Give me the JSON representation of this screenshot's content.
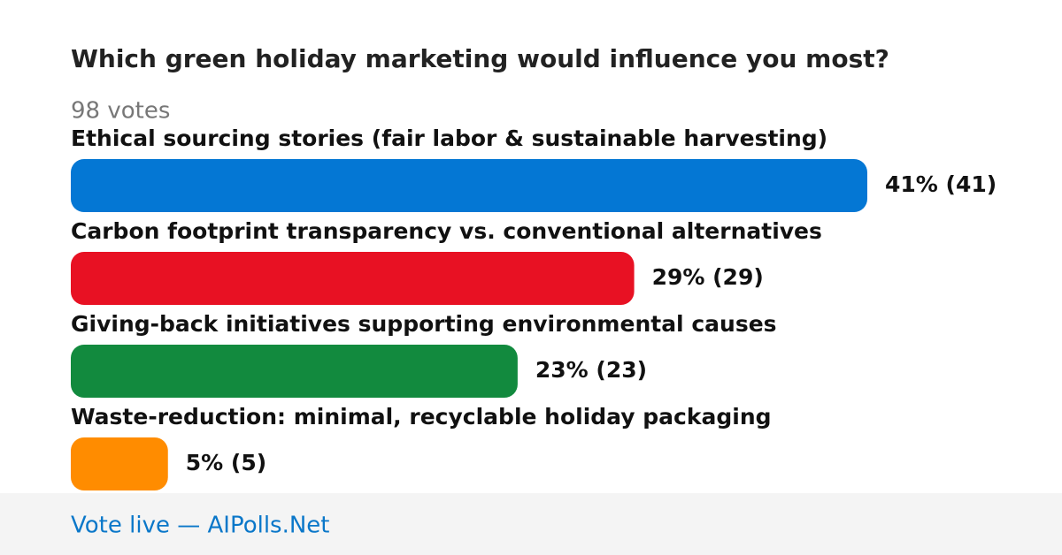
{
  "chart_data": {
    "type": "hbar-poll",
    "title": "Which green holiday marketing would influence you most?",
    "subtitle": "98 votes",
    "categories": [
      "Ethical sourcing stories (fair labor & sustainable harvesting)",
      "Carbon footprint transparency vs. conventional alternatives",
      "Giving-back initiatives supporting environmental causes",
      "Waste-reduction: minimal, recyclable holiday packaging"
    ],
    "values": [
      41,
      29,
      23,
      5
    ],
    "value_labels": [
      "41% (41)",
      "29% (29)",
      "23% (23)",
      "5% (5)"
    ],
    "colors": [
      "#0477d4",
      "#e81123",
      "#128a3e",
      "#ff8c00"
    ]
  },
  "footer": {
    "text": "Vote live — AIPolls.Net"
  }
}
